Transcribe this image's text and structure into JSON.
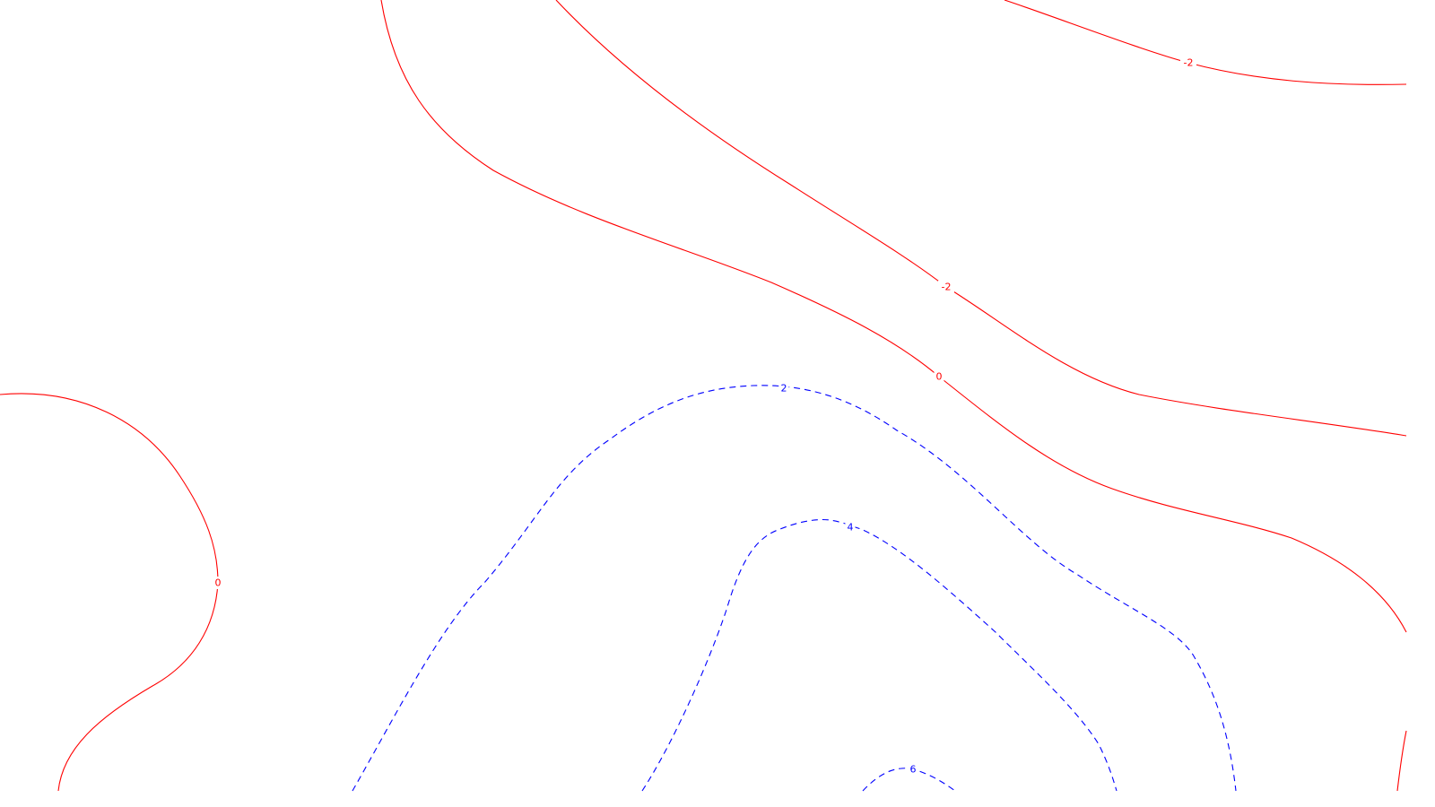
{
  "chart_data": {
    "type": "contour",
    "title": "",
    "xlabel": "",
    "ylabel": "",
    "grid": false,
    "legend": false,
    "colors": {
      "negative_or_zero": "#ff0000",
      "positive": "#0000ff",
      "background": "#ffffff"
    },
    "line_styles": {
      "negative_or_zero": "solid",
      "positive": "dashed"
    },
    "contours": [
      {
        "level": -2,
        "label": "-2",
        "style": "solid",
        "color": "#ff0000",
        "segment": "upper-right"
      },
      {
        "level": -2,
        "label": "-2",
        "style": "solid",
        "color": "#ff0000",
        "segment": "diagonal"
      },
      {
        "level": 0,
        "label": "0",
        "style": "solid",
        "color": "#ff0000",
        "segment": "main"
      },
      {
        "level": 0,
        "label": "0",
        "style": "solid",
        "color": "#ff0000",
        "segment": "left-lobe"
      },
      {
        "level": 2,
        "label": "2",
        "style": "dashed",
        "color": "#0000ff",
        "segment": "outer"
      },
      {
        "level": 4,
        "label": "4",
        "style": "dashed",
        "color": "#0000ff",
        "segment": "middle"
      },
      {
        "level": 6,
        "label": "6",
        "style": "dashed",
        "color": "#0000ff",
        "segment": "inner"
      }
    ]
  }
}
